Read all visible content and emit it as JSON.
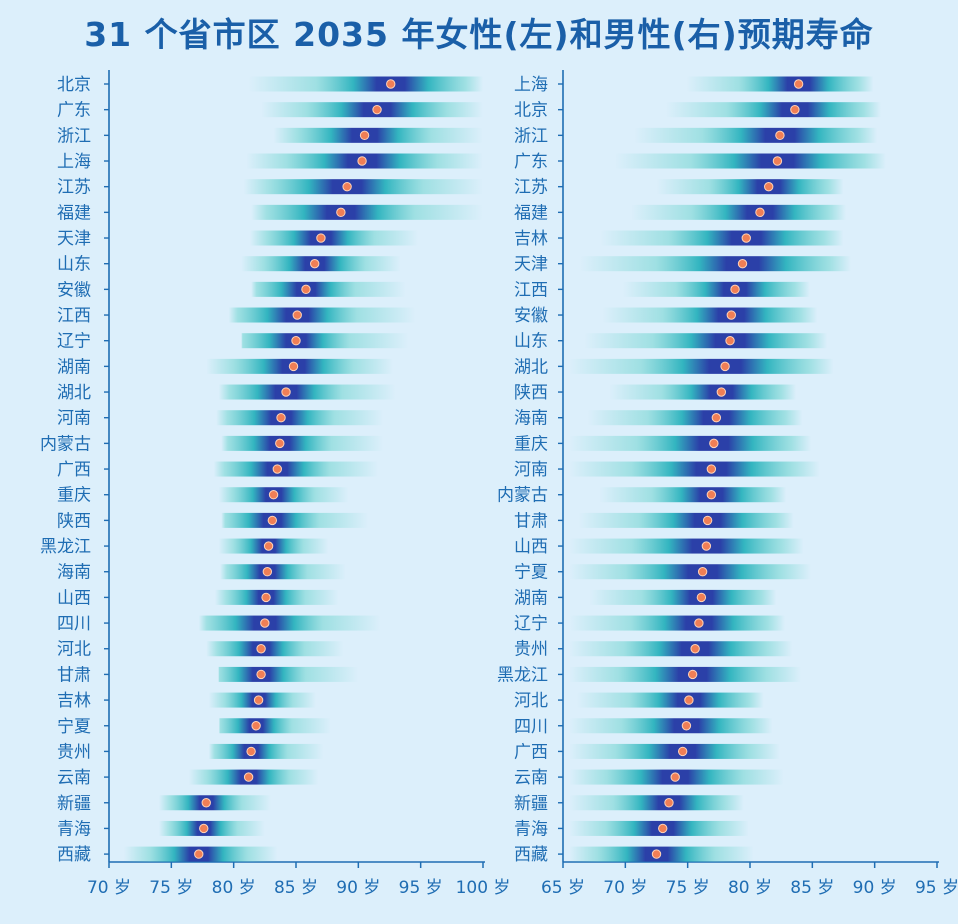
{
  "title": "31 个省市区 2035 年女性(左)和男性(右)预期寿命",
  "colors": {
    "axis": "#1f6db3",
    "text": "#1f6db3",
    "title": "#1a5fa8",
    "point": "#f07f56",
    "point_edge": "#ffd3b8",
    "band_outer": "#7fd8d6",
    "band_mid": "#2ab2bd",
    "band_core": "#2b40a8",
    "background": "#dceffb"
  },
  "chart_data": [
    {
      "type": "scatter",
      "title": "女性",
      "x_unit": "岁",
      "xlim": [
        70,
        100
      ],
      "xticks": [
        70,
        75,
        80,
        85,
        90,
        95,
        100
      ],
      "tick_labels": [
        "70 岁",
        "75 岁",
        "80 岁",
        "85 岁",
        "90 岁",
        "95 岁",
        "100 岁"
      ],
      "categories": [
        "北京",
        "广东",
        "浙江",
        "上海",
        "江苏",
        "福建",
        "天津",
        "山东",
        "安徽",
        "江西",
        "辽宁",
        "湖南",
        "湖北",
        "河南",
        "内蒙古",
        "广西",
        "重庆",
        "陕西",
        "黑龙江",
        "海南",
        "山西",
        "四川",
        "河北",
        "甘肃",
        "吉林",
        "宁夏",
        "贵州",
        "云南",
        "新疆",
        "青海",
        "西藏"
      ],
      "values": [
        92.6,
        91.5,
        90.5,
        90.3,
        89.1,
        88.6,
        87.0,
        86.5,
        85.8,
        85.1,
        85.0,
        84.8,
        84.2,
        83.8,
        83.7,
        83.5,
        83.2,
        83.1,
        82.8,
        82.7,
        82.6,
        82.5,
        82.2,
        82.2,
        82.0,
        81.8,
        81.4,
        81.2,
        77.8,
        77.6,
        77.2
      ],
      "ranges": [
        [
          81.2,
          100
        ],
        [
          82.2,
          100
        ],
        [
          83.2,
          100
        ],
        [
          81.0,
          100
        ],
        [
          80.8,
          100
        ],
        [
          81.4,
          100
        ],
        [
          81.3,
          94.8
        ],
        [
          80.6,
          93.4
        ],
        [
          81.4,
          93.8
        ],
        [
          79.6,
          94.6
        ],
        [
          80.6,
          94.0
        ],
        [
          77.8,
          92.8
        ],
        [
          78.8,
          93.0
        ],
        [
          78.6,
          92.0
        ],
        [
          79.0,
          92.0
        ],
        [
          78.4,
          91.6
        ],
        [
          78.8,
          89.2
        ],
        [
          79.0,
          90.8
        ],
        [
          78.8,
          87.6
        ],
        [
          78.9,
          89.0
        ],
        [
          78.5,
          88.4
        ],
        [
          77.2,
          91.8
        ],
        [
          77.8,
          88.8
        ],
        [
          78.8,
          90.0
        ],
        [
          78.0,
          86.6
        ],
        [
          78.8,
          87.8
        ],
        [
          78.0,
          87.2
        ],
        [
          76.4,
          86.8
        ],
        [
          74.0,
          83.0
        ],
        [
          74.0,
          82.5
        ],
        [
          71.2,
          83.5
        ]
      ]
    },
    {
      "type": "scatter",
      "title": "男性",
      "x_unit": "岁",
      "xlim": [
        65,
        95
      ],
      "xticks": [
        65,
        70,
        75,
        80,
        85,
        90,
        95
      ],
      "tick_labels": [
        "65 岁",
        "70 岁",
        "75 岁",
        "80 岁",
        "85 岁",
        "90 岁",
        "95 岁"
      ],
      "categories": [
        "上海",
        "北京",
        "浙江",
        "广东",
        "江苏",
        "福建",
        "吉林",
        "天津",
        "江西",
        "安徽",
        "山东",
        "湖北",
        "陕西",
        "海南",
        "重庆",
        "河南",
        "内蒙古",
        "甘肃",
        "山西",
        "宁夏",
        "湖南",
        "辽宁",
        "贵州",
        "黑龙江",
        "河北",
        "四川",
        "广西",
        "云南",
        "新疆",
        "青海",
        "西藏"
      ],
      "values": [
        83.9,
        83.6,
        82.4,
        82.2,
        81.5,
        80.8,
        79.7,
        79.4,
        78.8,
        78.5,
        78.4,
        78.0,
        77.7,
        77.3,
        77.1,
        76.9,
        76.9,
        76.6,
        76.5,
        76.2,
        76.1,
        75.9,
        75.6,
        75.4,
        75.1,
        74.9,
        74.6,
        74.0,
        73.5,
        73.0,
        72.5
      ]
    }
  ]
}
